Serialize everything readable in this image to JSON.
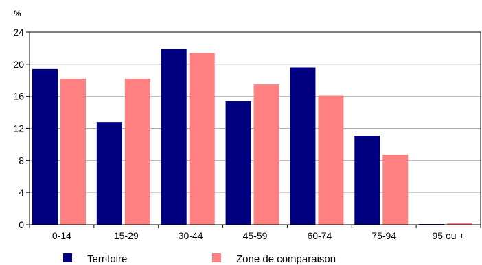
{
  "chart_data": {
    "type": "bar",
    "unit_label": "%",
    "categories": [
      "0-14",
      "15-29",
      "30-44",
      "45-59",
      "60-74",
      "75-94",
      "95 ou +"
    ],
    "series": [
      {
        "name": "Territoire",
        "color": "#000080",
        "values": [
          19.4,
          12.8,
          21.9,
          15.4,
          19.6,
          11.1,
          0.05
        ]
      },
      {
        "name": "Zone de comparaison",
        "color": "#ff8080",
        "values": [
          18.2,
          18.2,
          21.4,
          17.5,
          16.1,
          8.7,
          0.2
        ]
      }
    ],
    "ylim": [
      0,
      24
    ],
    "yticks": [
      0,
      4,
      8,
      12,
      16,
      20,
      24
    ],
    "grid": true,
    "legend_position": "bottom"
  }
}
